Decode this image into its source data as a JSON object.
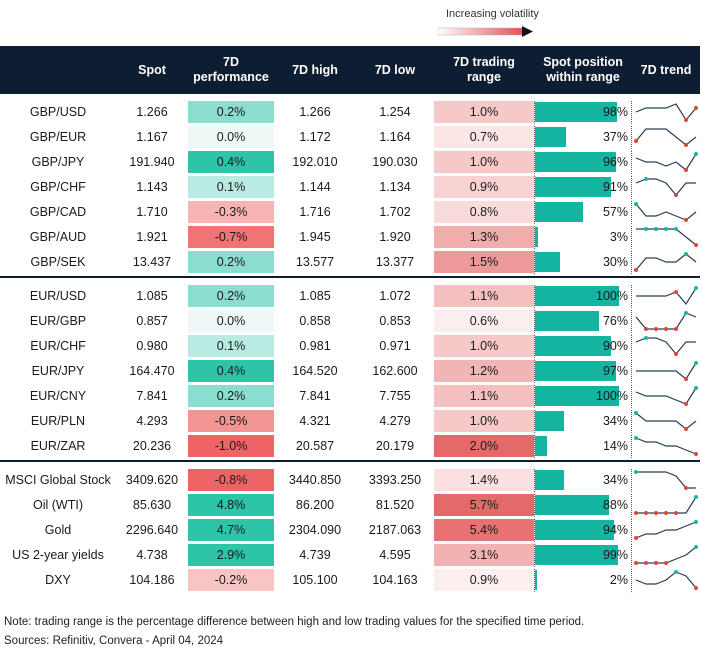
{
  "volatility_legend": "Increasing volatility",
  "headers": {
    "name": "",
    "spot": "Spot",
    "perf": "7D performance",
    "high": "7D high",
    "low": "7D low",
    "range": "7D trading range",
    "position": "Spot position within range",
    "trend": "7D trend"
  },
  "colors": {
    "header_bg": "#0d1e33",
    "position_bar": "#13b5a1",
    "positive_strong": "#2ec4a8",
    "negative_strong": "#ee6464",
    "range_high": "#e46a6a"
  },
  "groups": [
    {
      "rows": [
        {
          "name": "GBP/USD",
          "spot": "1.266",
          "perf": "0.2%",
          "perf_value": 0.2,
          "high": "1.266",
          "low": "1.254",
          "range": "1.0%",
          "range_value": 1.0,
          "position": "98%",
          "position_value": 98,
          "trend": [
            3,
            4,
            4,
            4,
            5,
            1,
            4
          ],
          "dots": [
            5,
            6
          ]
        },
        {
          "name": "GBP/EUR",
          "spot": "1.167",
          "perf": "0.0%",
          "perf_value": 0.0,
          "high": "1.172",
          "low": "1.164",
          "range": "0.7%",
          "range_value": 0.7,
          "position": "37%",
          "position_value": 37,
          "trend": [
            2,
            5,
            5,
            5,
            3,
            1,
            3
          ],
          "dots": [
            0,
            5
          ]
        },
        {
          "name": "GBP/JPY",
          "spot": "191.940",
          "perf": "0.4%",
          "perf_value": 0.4,
          "high": "192.010",
          "low": "190.030",
          "range": "1.0%",
          "range_value": 1.0,
          "position": "96%",
          "position_value": 96,
          "trend": [
            4,
            3,
            3,
            2,
            3,
            1,
            5
          ],
          "dots": [
            5,
            6
          ]
        },
        {
          "name": "GBP/CHF",
          "spot": "1.143",
          "perf": "0.1%",
          "perf_value": 0.1,
          "high": "1.144",
          "low": "1.134",
          "range": "0.9%",
          "range_value": 0.9,
          "position": "91%",
          "position_value": 91,
          "trend": [
            4,
            5,
            5,
            4,
            1,
            4,
            4
          ],
          "dots": [
            1,
            4
          ]
        },
        {
          "name": "GBP/CAD",
          "spot": "1.710",
          "perf": "-0.3%",
          "perf_value": -0.3,
          "high": "1.716",
          "low": "1.702",
          "range": "0.8%",
          "range_value": 0.8,
          "position": "57%",
          "position_value": 57,
          "trend": [
            5,
            2,
            2,
            3,
            2,
            1,
            3
          ],
          "dots": [
            0,
            5
          ]
        },
        {
          "name": "GBP/AUD",
          "spot": "1.921",
          "perf": "-0.7%",
          "perf_value": -0.7,
          "high": "1.945",
          "low": "1.920",
          "range": "1.3%",
          "range_value": 1.3,
          "position": "3%",
          "position_value": 3,
          "trend": [
            5,
            5,
            5,
            5,
            5,
            3,
            1
          ],
          "dots": [
            1,
            2,
            3,
            4,
            6
          ]
        },
        {
          "name": "GBP/SEK",
          "spot": "13.437",
          "perf": "0.2%",
          "perf_value": 0.2,
          "high": "13.577",
          "low": "13.377",
          "range": "1.5%",
          "range_value": 1.5,
          "position": "30%",
          "position_value": 30,
          "trend": [
            1,
            4,
            4,
            3,
            3,
            5,
            3
          ],
          "dots": [
            0,
            5
          ]
        }
      ]
    },
    {
      "rows": [
        {
          "name": "EUR/USD",
          "spot": "1.085",
          "perf": "0.2%",
          "perf_value": 0.2,
          "high": "1.085",
          "low": "1.072",
          "range": "1.1%",
          "range_value": 1.1,
          "position": "100%",
          "position_value": 100,
          "trend": [
            3,
            3,
            3,
            3,
            4,
            1,
            5
          ],
          "dots": [
            4,
            6
          ]
        },
        {
          "name": "EUR/GBP",
          "spot": "0.857",
          "perf": "0.0%",
          "perf_value": 0.0,
          "high": "0.858",
          "low": "0.853",
          "range": "0.6%",
          "range_value": 0.6,
          "position": "76%",
          "position_value": 76,
          "trend": [
            4,
            1,
            1,
            1,
            1,
            5,
            4
          ],
          "dots": [
            1,
            2,
            3,
            4,
            5
          ]
        },
        {
          "name": "EUR/CHF",
          "spot": "0.980",
          "perf": "0.1%",
          "perf_value": 0.1,
          "high": "0.981",
          "low": "0.971",
          "range": "1.0%",
          "range_value": 1.0,
          "position": "90%",
          "position_value": 90,
          "trend": [
            4,
            5,
            5,
            4,
            1,
            4,
            4
          ],
          "dots": [
            1,
            4
          ]
        },
        {
          "name": "EUR/JPY",
          "spot": "164.470",
          "perf": "0.4%",
          "perf_value": 0.4,
          "high": "164.520",
          "low": "162.600",
          "range": "1.2%",
          "range_value": 1.2,
          "position": "97%",
          "position_value": 97,
          "trend": [
            3,
            3,
            3,
            3,
            3,
            1,
            5
          ],
          "dots": [
            5,
            6
          ]
        },
        {
          "name": "EUR/CNY",
          "spot": "7.841",
          "perf": "0.2%",
          "perf_value": 0.2,
          "high": "7.841",
          "low": "7.755",
          "range": "1.1%",
          "range_value": 1.1,
          "position": "100%",
          "position_value": 100,
          "trend": [
            4,
            3,
            3,
            3,
            2,
            1,
            5
          ],
          "dots": [
            5,
            6
          ]
        },
        {
          "name": "EUR/PLN",
          "spot": "4.293",
          "perf": "-0.5%",
          "perf_value": -0.5,
          "high": "4.321",
          "low": "4.279",
          "range": "1.0%",
          "range_value": 1.0,
          "position": "34%",
          "position_value": 34,
          "trend": [
            5,
            3,
            3,
            3,
            3,
            1,
            3
          ],
          "dots": [
            0,
            5
          ]
        },
        {
          "name": "EUR/ZAR",
          "spot": "20.236",
          "perf": "-1.0%",
          "perf_value": -1.0,
          "high": "20.587",
          "low": "20.179",
          "range": "2.0%",
          "range_value": 2.0,
          "position": "14%",
          "position_value": 14,
          "trend": [
            5,
            4,
            4,
            3,
            3,
            2,
            1
          ],
          "dots": [
            0,
            6
          ]
        }
      ]
    },
    {
      "rows": [
        {
          "name": "MSCI Global Stock",
          "spot": "3409.620",
          "perf": "-0.8%",
          "perf_value": -0.8,
          "high": "3440.850",
          "low": "3393.250",
          "range": "1.4%",
          "range_value": 1.4,
          "position": "34%",
          "position_value": 34,
          "trend": [
            5,
            5,
            5,
            5,
            4,
            1,
            1
          ],
          "dots": [
            0,
            5
          ]
        },
        {
          "name": "Oil (WTI)",
          "spot": "85.630",
          "perf": "4.8%",
          "perf_value": 4.8,
          "high": "86.200",
          "low": "81.520",
          "range": "5.7%",
          "range_value": 5.7,
          "position": "88%",
          "position_value": 88,
          "trend": [
            1,
            1,
            1,
            1,
            1,
            1,
            5
          ],
          "dots": [
            0,
            1,
            2,
            3,
            4,
            6
          ]
        },
        {
          "name": "Gold",
          "spot": "2296.640",
          "perf": "4.7%",
          "perf_value": 4.7,
          "high": "2304.090",
          "low": "2187.063",
          "range": "5.4%",
          "range_value": 5.4,
          "position": "94%",
          "position_value": 94,
          "trend": [
            1,
            2,
            2,
            3,
            3,
            4,
            5
          ],
          "dots": [
            0,
            6
          ]
        },
        {
          "name": "US 2-year yields",
          "spot": "4.738",
          "perf": "2.9%",
          "perf_value": 2.9,
          "high": "4.739",
          "low": "4.595",
          "range": "3.1%",
          "range_value": 3.1,
          "position": "99%",
          "position_value": 99,
          "trend": [
            1,
            1,
            1,
            1,
            2,
            3,
            5
          ],
          "dots": [
            0,
            1,
            2,
            3,
            6
          ]
        },
        {
          "name": "DXY",
          "spot": "104.186",
          "perf": "-0.2%",
          "perf_value": -0.2,
          "high": "105.100",
          "low": "104.163",
          "range": "0.9%",
          "range_value": 0.9,
          "position": "2%",
          "position_value": 2,
          "trend": [
            3,
            2,
            2,
            3,
            5,
            4,
            1
          ],
          "dots": [
            4,
            6
          ]
        }
      ]
    }
  ],
  "notes": {
    "note": "Note: trading range is the percentage difference between high and low trading values for the specified time period.",
    "sources": "Sources: Refinitiv, Convera - April 04, 2024"
  }
}
